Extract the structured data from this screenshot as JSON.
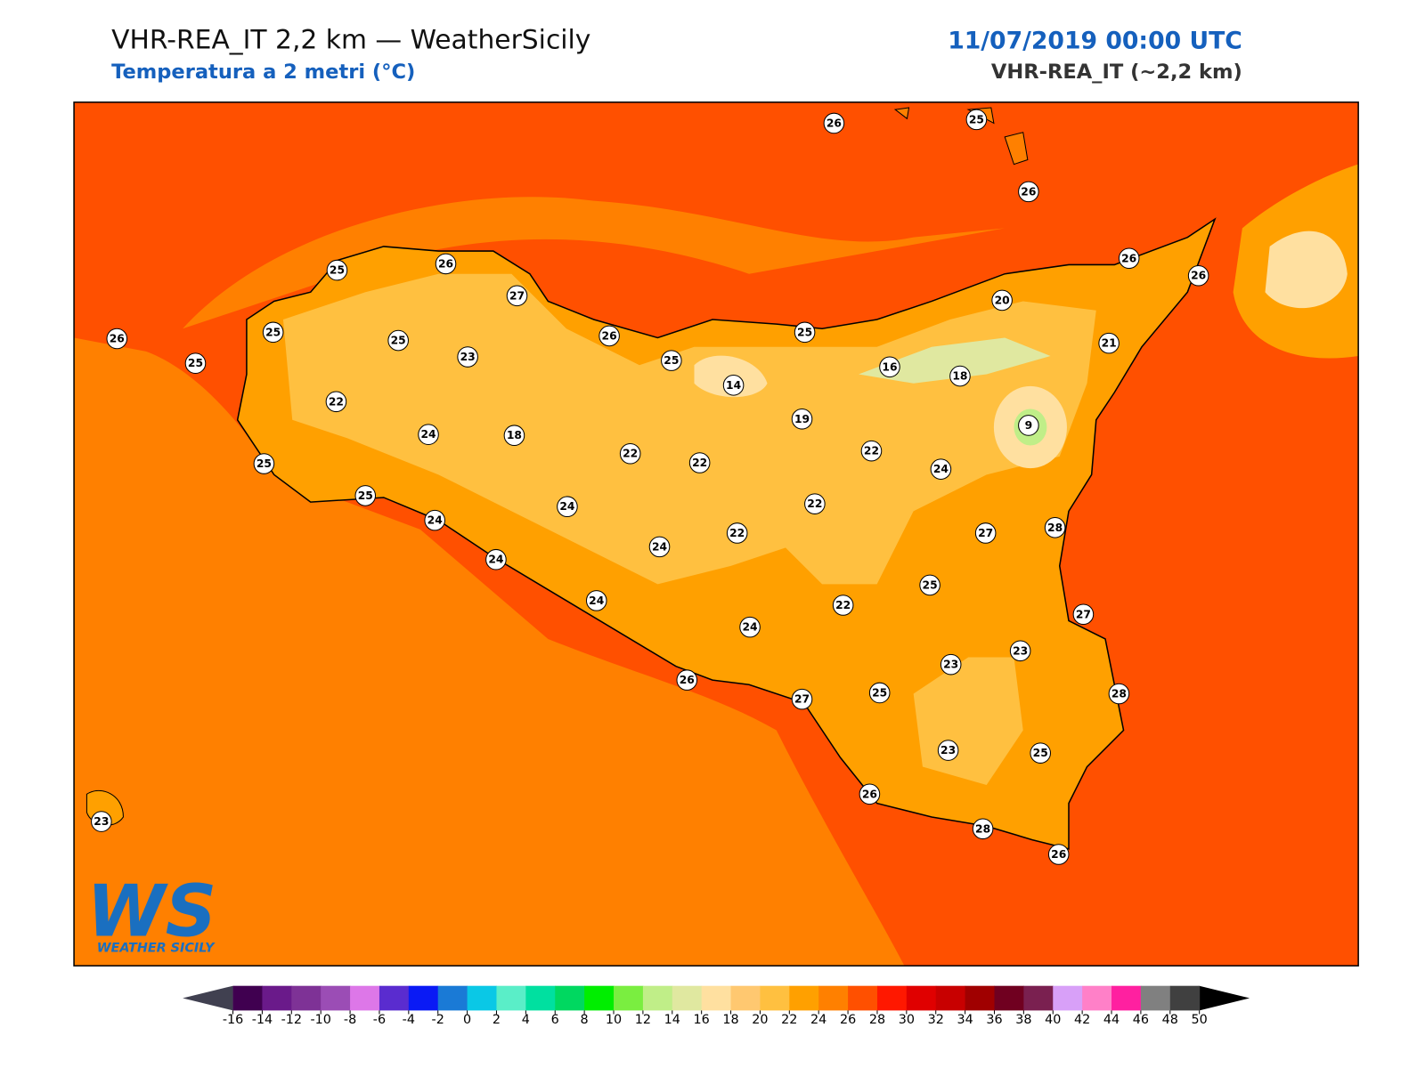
{
  "header": {
    "title": "VHR-REA_IT 2,2 km — WeatherSicily",
    "subtitle": "Temperatura a 2 metri (°C)",
    "date": "11/07/2019 00:00 UTC",
    "model": "VHR-REA_IT (~2,2 km)"
  },
  "stations": {
    "values": [
      26,
      25,
      26,
      25,
      26,
      27,
      26,
      26,
      26,
      25,
      25,
      25,
      26,
      23,
      25,
      25,
      20,
      21,
      16,
      18,
      14,
      22,
      19,
      9,
      24,
      18,
      22,
      22,
      22,
      24,
      25,
      25,
      24,
      22,
      24,
      22,
      27,
      28,
      24,
      24,
      25,
      24,
      22,
      27,
      24,
      23,
      23,
      26,
      25,
      28,
      27,
      23,
      25,
      26,
      28,
      26,
      23
    ]
  },
  "colorbar": {
    "ticks": [
      -16,
      -14,
      -12,
      -10,
      -8,
      -6,
      -4,
      -2,
      0,
      2,
      4,
      6,
      8,
      10,
      12,
      14,
      16,
      18,
      20,
      22,
      24,
      26,
      28,
      30,
      32,
      34,
      36,
      38,
      40,
      42,
      44,
      46,
      48,
      50
    ],
    "colors": [
      "#400050",
      "#6a1a8a",
      "#7e3296",
      "#9b4db5",
      "#dd77e8",
      "#5a2ccf",
      "#0a1af5",
      "#1a7ad6",
      "#0ac8e6",
      "#5aeec8",
      "#00e0a0",
      "#00d860",
      "#00ee00",
      "#7aee40",
      "#c0ee88",
      "#e0e8a0",
      "#ffe0a0",
      "#ffc870",
      "#ffc040",
      "#ffa000",
      "#ff8000",
      "#ff5000",
      "#ff1800",
      "#e00000",
      "#c80000",
      "#a00000",
      "#700020",
      "#7a2050",
      "#d8a0f8",
      "#ff80c8",
      "#ff20a0",
      "#808080",
      "#404040"
    ],
    "under": "#404050",
    "over": "#000000"
  },
  "logo": {
    "mark": "WS",
    "text": "WEATHER SICILY"
  }
}
